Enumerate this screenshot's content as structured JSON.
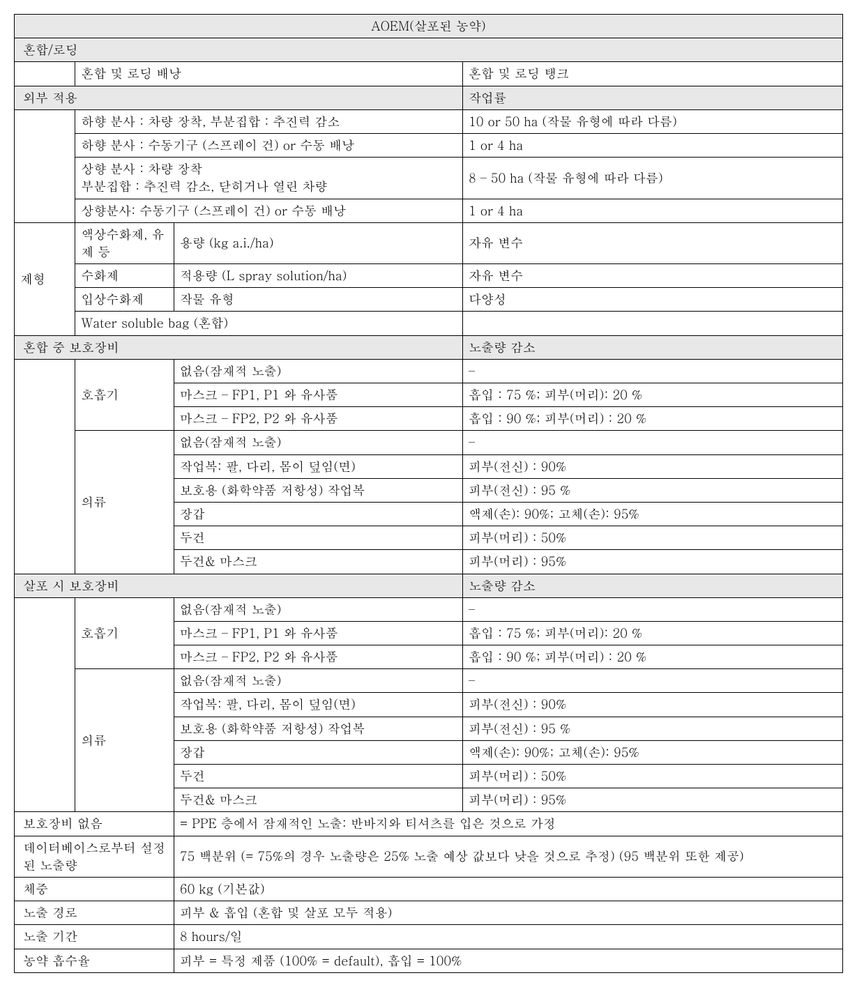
{
  "title": "AOEM(살포된 농약)",
  "mixingLoading": {
    "header": "혼합/로딩",
    "backpack": "혼합 및 로딩 배낭",
    "tank": "혼합 및 로딩 탱크"
  },
  "external": {
    "header": "외부 적용",
    "workRate": "작업률",
    "rows": [
      {
        "desc": "하향 분사 : 차량 장착, 부분집합 : 추진력 감소",
        "rate": "10 or 50 ha (작물 유형에 따라 다름)"
      },
      {
        "desc": "하향 분사 :  수동기구 (스프레이 건) or 수동 배낭",
        "rate": "1 or 4 ha"
      },
      {
        "desc": "상향 분사 : 차량 장착\n부분집합 : 추진력 감소, 닫히거나 열린 차량",
        "rate": "8 – 50 ha  (작물 유형에 따라 다름)"
      },
      {
        "desc": "상향분사: 수동기구 (스프레이 건) or 수동 배낭",
        "rate": "1 or 4 ha"
      }
    ]
  },
  "formulation": {
    "label": "제형",
    "rows": [
      {
        "sub": "액상수화제, 유제 등",
        "desc": "용량 (kg a.i./ha)",
        "val": "자유 변수"
      },
      {
        "sub": "수화제",
        "desc": "적용량 (L spray solution/ha)",
        "val": "자유 변수"
      },
      {
        "sub": "입상수화제",
        "desc": "작물 유형",
        "val": "다양성"
      },
      {
        "sub": "Water soluble bag (혼합)",
        "desc": "",
        "val": ""
      }
    ]
  },
  "ppe_mixing": {
    "header": "혼합 중 보호장비",
    "reduction": "노출량 감소",
    "respiratory": {
      "label": "호흡기",
      "rows": [
        {
          "desc": "없음(잠재적 노출)",
          "val": "–"
        },
        {
          "desc": "마스크 – FP1, P1 와 유사품",
          "val": "흡입 : 75 %; 피부(머리): 20 %"
        },
        {
          "desc": "마스크 – FP2, P2 와 유사품",
          "val": "흡입 : 90 %; 피부(머리) : 20 %"
        }
      ]
    },
    "clothing": {
      "label": "의류",
      "rows": [
        {
          "desc": "없음(잠재적 노출)",
          "val": "–"
        },
        {
          "desc": "작업복: 팔, 다리, 몸이 덮임(면)",
          "val": "피부(전신) : 90%"
        },
        {
          "desc": "보호용 (화학약품 저항성) 작업복",
          "val": "피부(전신) : 95 %"
        },
        {
          "desc": "장갑",
          "val": "액제(손): 90%; 고체(손): 95%"
        },
        {
          "desc": "두건",
          "val": "피부(머리) : 50%"
        },
        {
          "desc": "두건& 마스크",
          "val": "피부(머리) : 95%"
        }
      ]
    }
  },
  "ppe_spray": {
    "header": "살포 시 보호장비",
    "reduction": "노출량 감소",
    "respiratory": {
      "label": "호흡기",
      "rows": [
        {
          "desc": "없음(잠재적 노출)",
          "val": "–"
        },
        {
          "desc": "마스크 – FP1, P1 와 유사품",
          "val": "흡입 : 75 %; 피부(머리):  20 %"
        },
        {
          "desc": "마스크 – FP2, P2 와 유사품",
          "val": "흡입 : 90 %; 피부(머리) : 20 %"
        }
      ]
    },
    "clothing": {
      "label": "의류",
      "rows": [
        {
          "desc": "없음(잠재적 노출)",
          "val": "–"
        },
        {
          "desc": "작업복: 팔, 다리, 몸이 덮임(면)",
          "val": "피부(전신) :  90%"
        },
        {
          "desc": "보호용 (화학약품 저항성) 작업복",
          "val": "피부(전신) :  95 %"
        },
        {
          "desc": "장갑",
          "val": "액제(손): 90%; 고체(손): 95%"
        },
        {
          "desc": "두건",
          "val": "피부(머리) : 50%"
        },
        {
          "desc": "두건& 마스크",
          "val": "피부(머리) : 95%"
        }
      ]
    }
  },
  "footer": {
    "rows": [
      {
        "label": "보호장비 없음",
        "val": "= PPE 층에서 잠재적인 노출:  반바지와 티셔츠를 입은 것으로 가정"
      },
      {
        "label": "데이터베이스로부터 설정된 노출량",
        "val": "75 백분위 (= 75%의 경우 노출량은 25% 노출 예상 값보다 낮을 것으로 추정) (95 백분위 또한 제공)"
      },
      {
        "label": "체중",
        "val": "60 kg (기본값)"
      },
      {
        "label": "노출 경로",
        "val": "피부 & 흡입 (혼합 및 살포 모두 적용)"
      },
      {
        "label": "노출 기간",
        "val": "8 hours/일"
      },
      {
        "label": "농약 흡수율",
        "val": "피부 = 특정 제품 (100% = default),  흡입 = 100%"
      }
    ]
  }
}
